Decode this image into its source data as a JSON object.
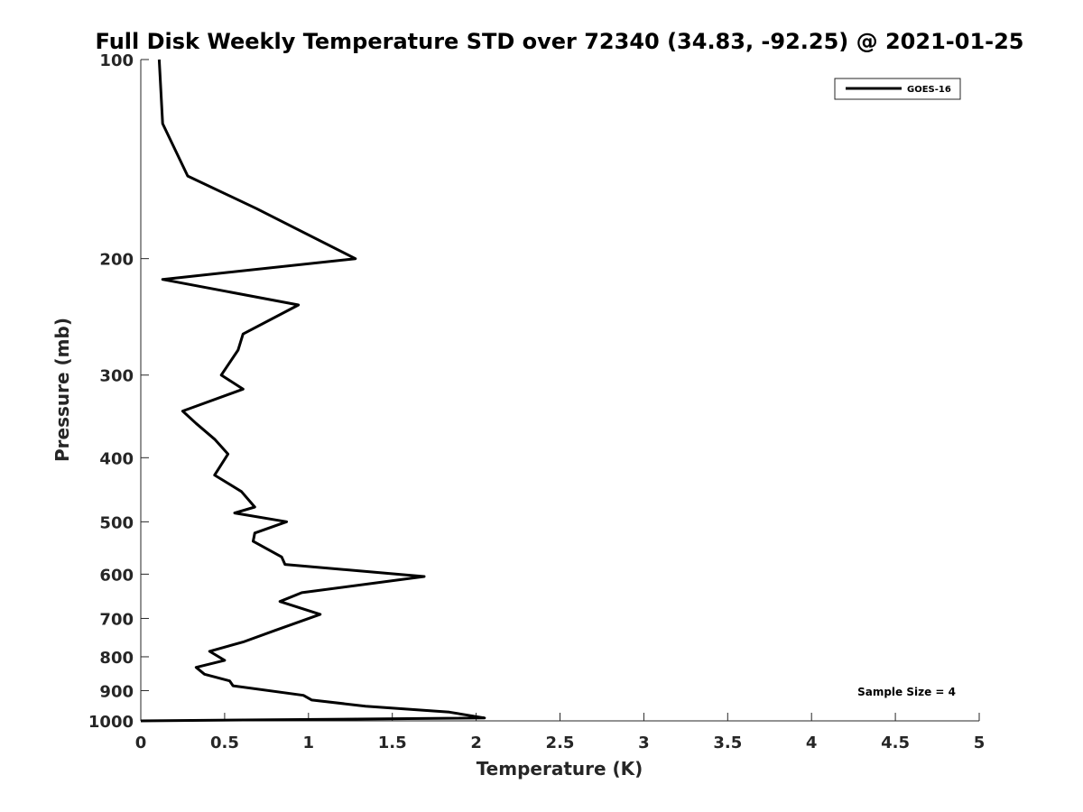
{
  "chart_data": {
    "type": "line",
    "title": "Full Disk Weekly Temperature STD over 72340 (34.83, -92.25) @ 2021-01-25",
    "xlabel": "Temperature (K)",
    "ylabel": "Pressure (mb)",
    "xlim": [
      0,
      5
    ],
    "ylim": [
      100,
      1000
    ],
    "y_scale": "log",
    "y_reversed": true,
    "grid": false,
    "legend_position": "top-right",
    "x_ticks": [
      "0",
      "0.5",
      "1",
      "1.5",
      "2",
      "2.5",
      "3",
      "3.5",
      "4",
      "4.5",
      "5"
    ],
    "y_ticks": [
      "100",
      "200",
      "300",
      "400",
      "500",
      "600",
      "700",
      "800",
      "900",
      "1000"
    ],
    "series": [
      {
        "name": "GOES-16",
        "color": "#000000",
        "points": [
          [
            0.11,
            100
          ],
          [
            0.13,
            125
          ],
          [
            0.28,
            150
          ],
          [
            0.69,
            168
          ],
          [
            1.28,
            200
          ],
          [
            0.13,
            215
          ],
          [
            0.94,
            235
          ],
          [
            0.61,
            260
          ],
          [
            0.58,
            275
          ],
          [
            0.48,
            300
          ],
          [
            0.61,
            315
          ],
          [
            0.25,
            340
          ],
          [
            0.33,
            355
          ],
          [
            0.44,
            375
          ],
          [
            0.52,
            395
          ],
          [
            0.44,
            425
          ],
          [
            0.6,
            450
          ],
          [
            0.68,
            475
          ],
          [
            0.56,
            485
          ],
          [
            0.87,
            500
          ],
          [
            0.68,
            520
          ],
          [
            0.67,
            535
          ],
          [
            0.84,
            565
          ],
          [
            0.86,
            580
          ],
          [
            1.69,
            605
          ],
          [
            0.96,
            640
          ],
          [
            0.83,
            660
          ],
          [
            1.07,
            690
          ],
          [
            0.8,
            730
          ],
          [
            0.61,
            760
          ],
          [
            0.41,
            785
          ],
          [
            0.5,
            810
          ],
          [
            0.33,
            830
          ],
          [
            0.38,
            850
          ],
          [
            0.53,
            870
          ],
          [
            0.55,
            885
          ],
          [
            0.97,
            915
          ],
          [
            1.02,
            930
          ],
          [
            1.34,
            950
          ],
          [
            1.84,
            970
          ],
          [
            2.05,
            990
          ],
          [
            0.0,
            1000
          ]
        ]
      }
    ],
    "annotations": [
      "Sample Size = 4"
    ]
  }
}
